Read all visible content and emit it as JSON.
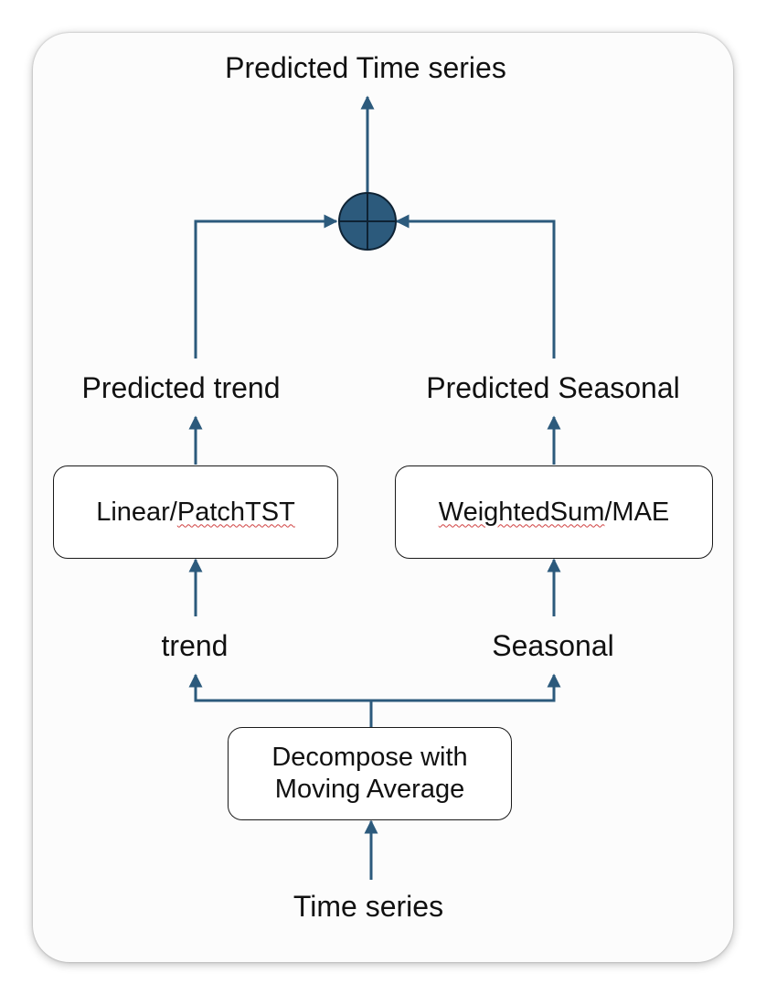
{
  "colors": {
    "line": "#2c5a7c",
    "sum_fill": "#2c5a7c",
    "sum_stroke": "#0e2233",
    "box_border": "#1a1a1a",
    "text": "#111111",
    "spellcheck_underline": "#d04040"
  },
  "nodes": {
    "output": {
      "label": "Predicted Time series"
    },
    "sum": {
      "icon": "plus-circle-icon"
    },
    "predicted_trend": {
      "label": "Predicted trend"
    },
    "predicted_seasonal": {
      "label": "Predicted Seasonal"
    },
    "trend_model": {
      "prefix": "Linear/",
      "main": "PatchTST"
    },
    "seasonal_model": {
      "main": "WeightedSum",
      "suffix": "/MAE"
    },
    "trend": {
      "label": "trend"
    },
    "seasonal": {
      "label": "Seasonal"
    },
    "decompose": {
      "line1": "Decompose with",
      "line2": "Moving Average"
    },
    "input": {
      "label": "Time series"
    }
  }
}
